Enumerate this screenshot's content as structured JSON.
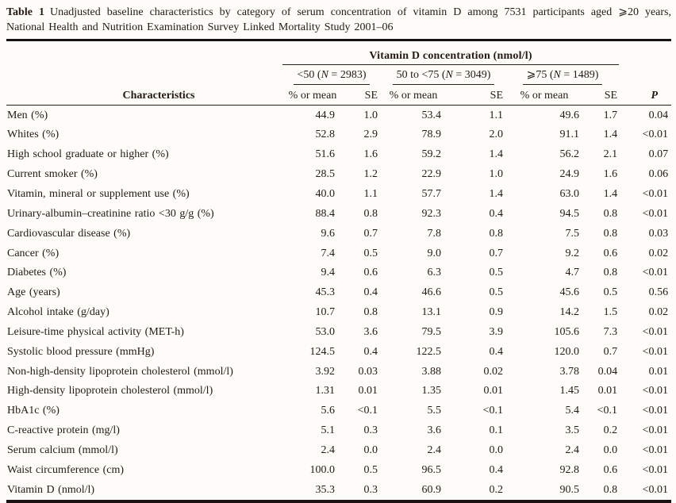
{
  "caption": {
    "label": "Table 1",
    "text": "Unadjusted baseline characteristics by category of serum concentration of vitamin D among 7531 participants aged ⩾20 years, National Health and Nutrition Examination Survey Linked Mortality Study 2001–06"
  },
  "table": {
    "span_header": "Vitamin D concentration (nmol/l)",
    "characteristics_header": "Characteristics",
    "value_header": "% or mean",
    "se_header": "SE",
    "p_header": "P",
    "groups": [
      {
        "pre": "<50 (",
        "n": "N",
        "post": " = 2983)"
      },
      {
        "pre": "50 to <75 (",
        "n": "N",
        "post": " = 3049)"
      },
      {
        "pre": "⩾75 (",
        "n": "N",
        "post": " = 1489)"
      }
    ],
    "rows": [
      {
        "label": "Men (%)",
        "values": [
          "44.9",
          "1.0",
          "53.4",
          "1.1",
          "49.6",
          "1.7",
          "0.04"
        ]
      },
      {
        "label": "Whites (%)",
        "values": [
          "52.8",
          "2.9",
          "78.9",
          "2.0",
          "91.1",
          "1.4",
          "<0.01"
        ]
      },
      {
        "label": "High school graduate or higher (%)",
        "values": [
          "51.6",
          "1.6",
          "59.2",
          "1.4",
          "56.2",
          "2.1",
          "0.07"
        ]
      },
      {
        "label": "Current smoker (%)",
        "values": [
          "28.5",
          "1.2",
          "22.9",
          "1.0",
          "24.9",
          "1.6",
          "0.06"
        ]
      },
      {
        "label": "Vitamin, mineral or supplement use (%)",
        "values": [
          "40.0",
          "1.1",
          "57.7",
          "1.4",
          "63.0",
          "1.4",
          "<0.01"
        ]
      },
      {
        "label": "Urinary-albumin–creatinine ratio <30 g/g (%)",
        "values": [
          "88.4",
          "0.8",
          "92.3",
          "0.4",
          "94.5",
          "0.8",
          "<0.01"
        ]
      },
      {
        "label": "Cardiovascular disease (%)",
        "values": [
          "9.6",
          "0.7",
          "7.8",
          "0.8",
          "7.5",
          "0.8",
          "0.03"
        ]
      },
      {
        "label": "Cancer (%)",
        "values": [
          "7.4",
          "0.5",
          "9.0",
          "0.7",
          "9.2",
          "0.6",
          "0.02"
        ]
      },
      {
        "label": "Diabetes (%)",
        "values": [
          "9.4",
          "0.6",
          "6.3",
          "0.5",
          "4.7",
          "0.8",
          "<0.01"
        ]
      },
      {
        "label": "Age (years)",
        "values": [
          "45.3",
          "0.4",
          "46.6",
          "0.5",
          "45.6",
          "0.5",
          "0.56"
        ]
      },
      {
        "label": "Alcohol intake (g/day)",
        "values": [
          "10.7",
          "0.8",
          "13.1",
          "0.9",
          "14.2",
          "1.5",
          "0.02"
        ]
      },
      {
        "label": "Leisure-time physical activity (MET-h)",
        "values": [
          "53.0",
          "3.6",
          "79.5",
          "3.9",
          "105.6",
          "7.3",
          "<0.01"
        ]
      },
      {
        "label": "Systolic blood pressure (mmHg)",
        "values": [
          "124.5",
          "0.4",
          "122.5",
          "0.4",
          "120.0",
          "0.7",
          "<0.01"
        ]
      },
      {
        "label": "Non-high-density lipoprotein cholesterol (mmol/l)",
        "values": [
          "3.92",
          "0.03",
          "3.88",
          "0.02",
          "3.78",
          "0.04",
          "0.01"
        ]
      },
      {
        "label": "High-density lipoprotein cholesterol (mmol/l)",
        "values": [
          "1.31",
          "0.01",
          "1.35",
          "0.01",
          "1.45",
          "0.01",
          "<0.01"
        ]
      },
      {
        "label": "HbA1c (%)",
        "values": [
          "5.6",
          "<0.1",
          "5.5",
          "<0.1",
          "5.4",
          "<0.1",
          "<0.01"
        ]
      },
      {
        "label": "C-reactive protein (mg/l)",
        "values": [
          "5.1",
          "0.3",
          "3.6",
          "0.1",
          "3.5",
          "0.2",
          "<0.01"
        ]
      },
      {
        "label": "Serum calcium (mmol/l)",
        "values": [
          "2.4",
          "0.0",
          "2.4",
          "0.0",
          "2.4",
          "0.0",
          "<0.01"
        ]
      },
      {
        "label": "Waist circumference (cm)",
        "values": [
          "100.0",
          "0.5",
          "96.5",
          "0.4",
          "92.8",
          "0.6",
          "<0.01"
        ]
      },
      {
        "label": "Vitamin D (nmol/l)",
        "values": [
          "35.3",
          "0.3",
          "60.9",
          "0.2",
          "90.5",
          "0.8",
          "<0.01"
        ]
      }
    ]
  },
  "colors": {
    "text": "#241a12",
    "rule": "#1a1210",
    "background": "#fdfcf9"
  }
}
